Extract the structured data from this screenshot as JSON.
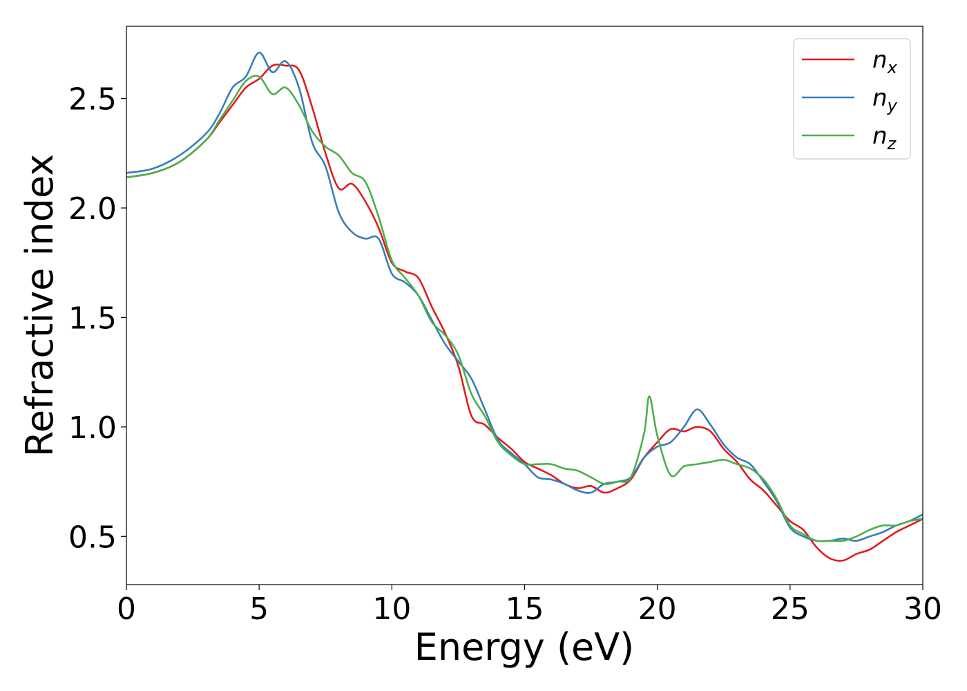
{
  "chart_data": {
    "type": "line",
    "title": "",
    "xlabel": "Energy (eV)",
    "ylabel": "Refractive index",
    "xlim": [
      0,
      30
    ],
    "ylim": [
      0.28,
      2.83
    ],
    "xticks": [
      0,
      5,
      10,
      15,
      20,
      25,
      30
    ],
    "yticks": [
      0.5,
      1.0,
      1.5,
      2.0,
      2.5
    ],
    "xtick_labels": [
      "0",
      "5",
      "10",
      "15",
      "20",
      "25",
      "30"
    ],
    "ytick_labels": [
      "0.5",
      "1.0",
      "1.5",
      "2.0",
      "2.5"
    ],
    "grid": false,
    "legend_position": "top-right",
    "series": [
      {
        "name": "n_x",
        "label_base": "n",
        "label_sub": "x",
        "color": "#e41a1c",
        "x": [
          0,
          1,
          2,
          3,
          3.5,
          4,
          4.5,
          5,
          5.5,
          6,
          6.5,
          7,
          7.5,
          8,
          8.5,
          9,
          9.5,
          10,
          10.5,
          11,
          11.5,
          12,
          12.5,
          13,
          13.5,
          14,
          14.5,
          15,
          15.5,
          16,
          16.5,
          17,
          17.5,
          18,
          18.5,
          19,
          19.5,
          20,
          20.5,
          21,
          21.5,
          22,
          22.5,
          23,
          23.5,
          24,
          24.5,
          25,
          25.5,
          26,
          26.5,
          27,
          27.5,
          28,
          28.5,
          29,
          29.5,
          30
        ],
        "y": [
          2.14,
          2.16,
          2.21,
          2.31,
          2.39,
          2.47,
          2.55,
          2.59,
          2.65,
          2.65,
          2.63,
          2.46,
          2.25,
          2.09,
          2.11,
          2.03,
          1.91,
          1.75,
          1.71,
          1.68,
          1.55,
          1.43,
          1.28,
          1.05,
          1.01,
          0.95,
          0.9,
          0.84,
          0.81,
          0.78,
          0.74,
          0.72,
          0.73,
          0.7,
          0.72,
          0.76,
          0.86,
          0.93,
          0.99,
          0.98,
          1.0,
          0.98,
          0.9,
          0.84,
          0.76,
          0.71,
          0.64,
          0.57,
          0.53,
          0.45,
          0.4,
          0.39,
          0.42,
          0.44,
          0.48,
          0.52,
          0.55,
          0.58
        ]
      },
      {
        "name": "n_y",
        "label_base": "n",
        "label_sub": "y",
        "color": "#377eb8",
        "x": [
          0,
          1,
          2,
          3,
          3.5,
          4,
          4.5,
          5,
          5.5,
          6,
          6.5,
          7,
          7.5,
          8,
          8.5,
          9,
          9.5,
          10,
          10.5,
          11,
          11.5,
          12,
          12.5,
          13,
          13.5,
          14,
          14.5,
          15,
          15.5,
          16,
          16.5,
          17,
          17.5,
          18,
          18.5,
          19,
          19.5,
          20,
          20.5,
          21,
          21.5,
          22,
          22.5,
          23,
          23.5,
          24,
          24.5,
          25,
          25.5,
          26,
          26.5,
          27,
          27.5,
          28,
          28.5,
          29,
          29.5,
          30
        ],
        "y": [
          2.16,
          2.18,
          2.24,
          2.34,
          2.43,
          2.55,
          2.6,
          2.71,
          2.62,
          2.67,
          2.55,
          2.3,
          2.19,
          1.98,
          1.89,
          1.86,
          1.86,
          1.7,
          1.66,
          1.6,
          1.49,
          1.38,
          1.3,
          1.22,
          1.08,
          0.94,
          0.88,
          0.83,
          0.77,
          0.76,
          0.74,
          0.71,
          0.7,
          0.74,
          0.75,
          0.77,
          0.86,
          0.91,
          0.93,
          1.0,
          1.08,
          1.01,
          0.92,
          0.86,
          0.83,
          0.75,
          0.66,
          0.54,
          0.5,
          0.48,
          0.48,
          0.49,
          0.48,
          0.5,
          0.52,
          0.55,
          0.57,
          0.6
        ]
      },
      {
        "name": "n_z",
        "label_base": "n",
        "label_sub": "z",
        "color": "#4daf4a",
        "x": [
          0,
          1,
          2,
          3,
          3.5,
          4,
          4.5,
          5,
          5.5,
          6,
          6.5,
          7,
          7.5,
          8,
          8.5,
          9,
          9.5,
          10,
          10.5,
          11,
          11.5,
          12,
          12.5,
          13,
          13.5,
          14,
          14.5,
          15,
          15.5,
          16,
          16.5,
          17,
          17.5,
          18,
          18.5,
          19,
          19.5,
          19.7,
          20,
          20.5,
          21,
          21.5,
          22,
          22.5,
          23,
          23.5,
          24,
          24.5,
          25,
          25.5,
          26,
          26.5,
          27,
          27.5,
          28,
          28.5,
          29,
          29.5,
          30
        ],
        "y": [
          2.14,
          2.16,
          2.21,
          2.31,
          2.4,
          2.49,
          2.58,
          2.6,
          2.52,
          2.55,
          2.47,
          2.35,
          2.28,
          2.24,
          2.16,
          2.12,
          1.96,
          1.76,
          1.68,
          1.6,
          1.48,
          1.42,
          1.33,
          1.15,
          1.05,
          0.93,
          0.87,
          0.83,
          0.83,
          0.83,
          0.81,
          0.8,
          0.77,
          0.74,
          0.75,
          0.77,
          0.97,
          1.14,
          0.96,
          0.78,
          0.82,
          0.83,
          0.84,
          0.85,
          0.83,
          0.81,
          0.76,
          0.67,
          0.55,
          0.51,
          0.48,
          0.48,
          0.48,
          0.5,
          0.53,
          0.55,
          0.55,
          0.57,
          0.58
        ]
      }
    ]
  }
}
